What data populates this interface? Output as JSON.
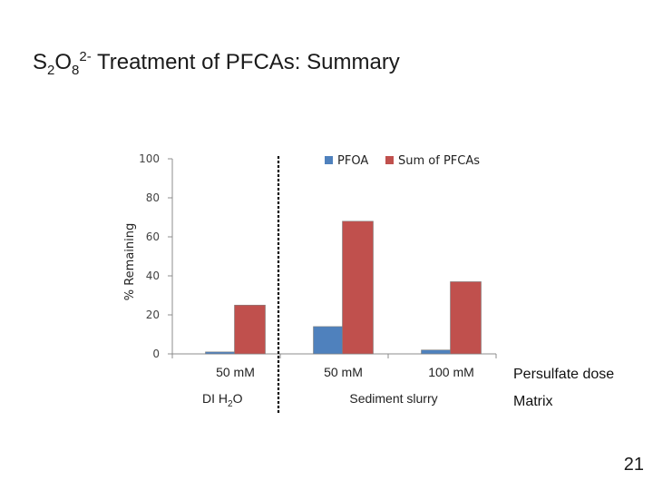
{
  "slide": {
    "title": {
      "base1": "S",
      "sub1": "2",
      "base2": "O",
      "sub2": "8",
      "sup": "2-",
      "rest": " Treatment of PFCAs: Summary"
    },
    "slide_number": "21"
  },
  "chart_data": {
    "type": "bar",
    "categories": [
      "50 mM",
      "50 mM",
      "100 mM"
    ],
    "series": [
      {
        "name": "PFOA",
        "values": [
          1,
          14,
          2
        ],
        "color": "#4f81bd"
      },
      {
        "name": "Sum of PFCAs",
        "values": [
          25,
          68,
          37
        ],
        "color": "#c0504d"
      }
    ],
    "ylabel": "% Remaining",
    "ylim": [
      0,
      100
    ],
    "yticks": [
      "0",
      "20",
      "40",
      "60",
      "80",
      "100"
    ],
    "legend_position": "top-right",
    "grid": false,
    "row_labels": {
      "dose": "Persulfate dose",
      "matrix": "Matrix"
    },
    "matrix_groups": [
      {
        "label_main": "DI H",
        "label_sub": "2",
        "label_end": "O",
        "categories": [
          0
        ]
      },
      {
        "label": "Sediment slurry",
        "categories": [
          1,
          2
        ]
      }
    ],
    "separator_after_category": 0
  }
}
